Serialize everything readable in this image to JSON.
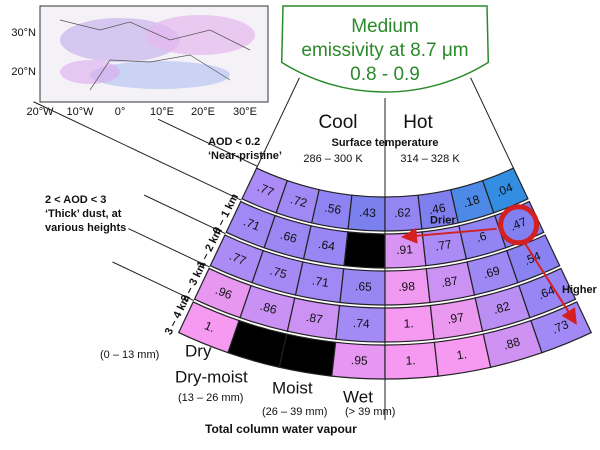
{
  "emissivity": {
    "lines": [
      "Medium",
      "emissivity at 8.7 μm",
      "0.8 - 0.9"
    ]
  },
  "map": {
    "lat_labels": [
      "30°N",
      "20°N"
    ],
    "lon_labels": [
      "20°W",
      "10°W",
      "0°",
      "10°E",
      "20°E",
      "30°E"
    ]
  },
  "temperature": {
    "cool": "Cool",
    "hot": "Hot",
    "label": "Surface temperature",
    "cool_range": "286 – 300 K",
    "hot_range": "314 – 328 K"
  },
  "aod": {
    "pristine": [
      "AOD < 0.2",
      "‘Near-pristine’"
    ],
    "thick": [
      "2 < AOD < 3",
      "‘Thick’ dust, at",
      "various heights"
    ]
  },
  "heights": [
    "0 – 1 km",
    "1 – 2 km",
    "2 – 3 km",
    "3 – 4 km"
  ],
  "grid": {
    "rows": [
      [
        ".77",
        ".72",
        ".56",
        ".43",
        ".62",
        ".46",
        ".18",
        ".04"
      ],
      [
        ".71",
        ".66",
        ".64",
        null,
        ".91",
        ".77",
        ".6",
        ".47"
      ],
      [
        ".77",
        ".75",
        ".71",
        ".65",
        ".98",
        ".87",
        ".69",
        ".54"
      ],
      [
        ".96",
        ".86",
        ".87",
        ".74",
        "1.",
        ".97",
        ".82",
        ".64"
      ],
      [
        "1.",
        null,
        null,
        ".95",
        "1.",
        "1.",
        ".88",
        ".73"
      ]
    ]
  },
  "annotations": {
    "drier": "Drier",
    "higher": "Higher"
  },
  "water_vapour": {
    "classes": [
      {
        "name": "Dry",
        "range": "(0 – 13 mm)"
      },
      {
        "name": "Dry-moist",
        "range": "(13 – 26 mm)"
      },
      {
        "name": "Moist",
        "range": "(26 – 39 mm)"
      },
      {
        "name": "Wet",
        "range": "(> 39 mm)"
      }
    ],
    "title": "Total column water vapour"
  }
}
